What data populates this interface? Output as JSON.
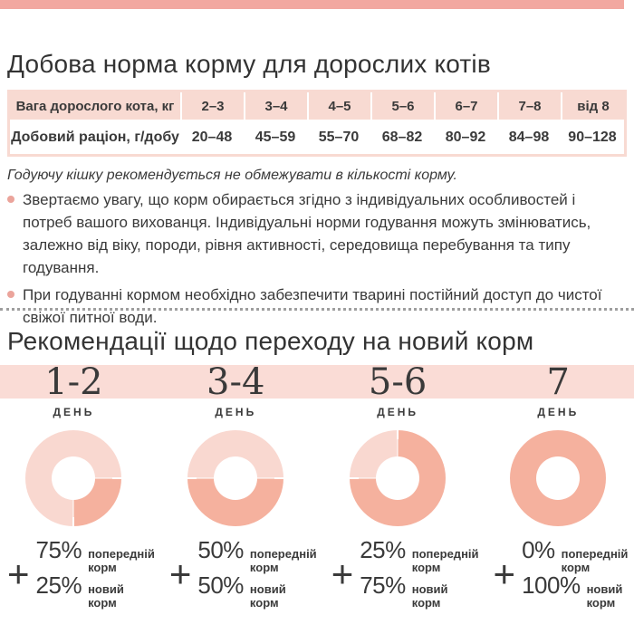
{
  "colors": {
    "top_bar": "#f2a8a0",
    "table_header_bg": "#f8dad2",
    "band_bg": "#fadcd6",
    "bullet_dot": "#eba49b",
    "donut_old": "#f9d8d0",
    "donut_new": "#f5b19e",
    "donut_gap": "#ffffff"
  },
  "section1": {
    "title": "Добова норма корму для дорослих котів",
    "table": {
      "header_label": "Вага дорослого кота, кг",
      "weight_ranges": [
        "2–3",
        "3–4",
        "4–5",
        "5–6",
        "6–7",
        "7–8",
        "від 8"
      ],
      "row_label": "Добовий раціон, г/добу",
      "row_values": [
        "20–48",
        "45–59",
        "55–70",
        "68–82",
        "80–92",
        "84–98",
        "90–128"
      ]
    },
    "note_italic": "Годуючу кішку рекомендується не обмежувати в кількості корму.",
    "bullets": [
      "Звертаємо увагу, що корм обирається згідно з індивідуальних особливостей і потреб вашого вихованця. Індивідуальні норми годування можуть змінюватись, залежно від віку, породи, рівня активності, середовища перебування та типу годування.",
      "При годуванні кормом необхідно забезпечити тварині постійний доступ до чистої свіжої питної води."
    ]
  },
  "section2": {
    "title": "Рекомендації щодо переходу на новий корм",
    "day_word": "ДЕНЬ",
    "steps": [
      {
        "days": "1-2",
        "plus": "+",
        "old_pct": "75%",
        "old_label": "попередній корм",
        "new_pct": "25%",
        "new_label": "новий корм",
        "donut": [
          [
            "old",
            0,
            89
          ],
          [
            "gap",
            89,
            91
          ],
          [
            "new",
            91,
            179
          ],
          [
            "gap",
            179,
            181
          ],
          [
            "old",
            181,
            360
          ]
        ]
      },
      {
        "days": "3-4",
        "plus": "+",
        "old_pct": "50%",
        "old_label": "попередній корм",
        "new_pct": "50%",
        "new_label": "новий корм",
        "donut": [
          [
            "old",
            0,
            89
          ],
          [
            "gap",
            89,
            91
          ],
          [
            "new",
            91,
            269
          ],
          [
            "gap",
            269,
            271
          ],
          [
            "old",
            271,
            360
          ]
        ]
      },
      {
        "days": "5-6",
        "plus": "+",
        "old_pct": "25%",
        "old_label": "попередній корм",
        "new_pct": "75%",
        "new_label": "новий корм",
        "donut": [
          [
            "gap",
            0,
            1
          ],
          [
            "new",
            1,
            269
          ],
          [
            "gap",
            269,
            271
          ],
          [
            "old",
            271,
            359
          ],
          [
            "gap",
            359,
            360
          ]
        ]
      },
      {
        "days": "7",
        "plus": "+",
        "old_pct": "0%",
        "old_label": "попередній корм",
        "new_pct": "100%",
        "new_label": "новий корм",
        "donut": [
          [
            "new",
            0,
            360
          ]
        ]
      }
    ]
  },
  "chart_data": [
    {
      "type": "table",
      "title": "Добова норма корму для дорослих котів",
      "columns": [
        "Вага дорослого кота, кг",
        "2–3",
        "3–4",
        "4–5",
        "5–6",
        "6–7",
        "7–8",
        "від 8"
      ],
      "rows": [
        [
          "Добовий раціон, г/добу",
          "20–48",
          "45–59",
          "55–70",
          "68–82",
          "80–92",
          "84–98",
          "90–128"
        ]
      ]
    },
    {
      "type": "pie",
      "title": "День 1-2",
      "labels": [
        "попередній корм",
        "новий корм"
      ],
      "values": [
        75,
        25
      ]
    },
    {
      "type": "pie",
      "title": "День 3-4",
      "labels": [
        "попередній корм",
        "новий корм"
      ],
      "values": [
        50,
        50
      ]
    },
    {
      "type": "pie",
      "title": "День 5-6",
      "labels": [
        "попередній корм",
        "новий корм"
      ],
      "values": [
        25,
        75
      ]
    },
    {
      "type": "pie",
      "title": "День 7",
      "labels": [
        "попередній корм",
        "новий корм"
      ],
      "values": [
        0,
        100
      ]
    }
  ]
}
